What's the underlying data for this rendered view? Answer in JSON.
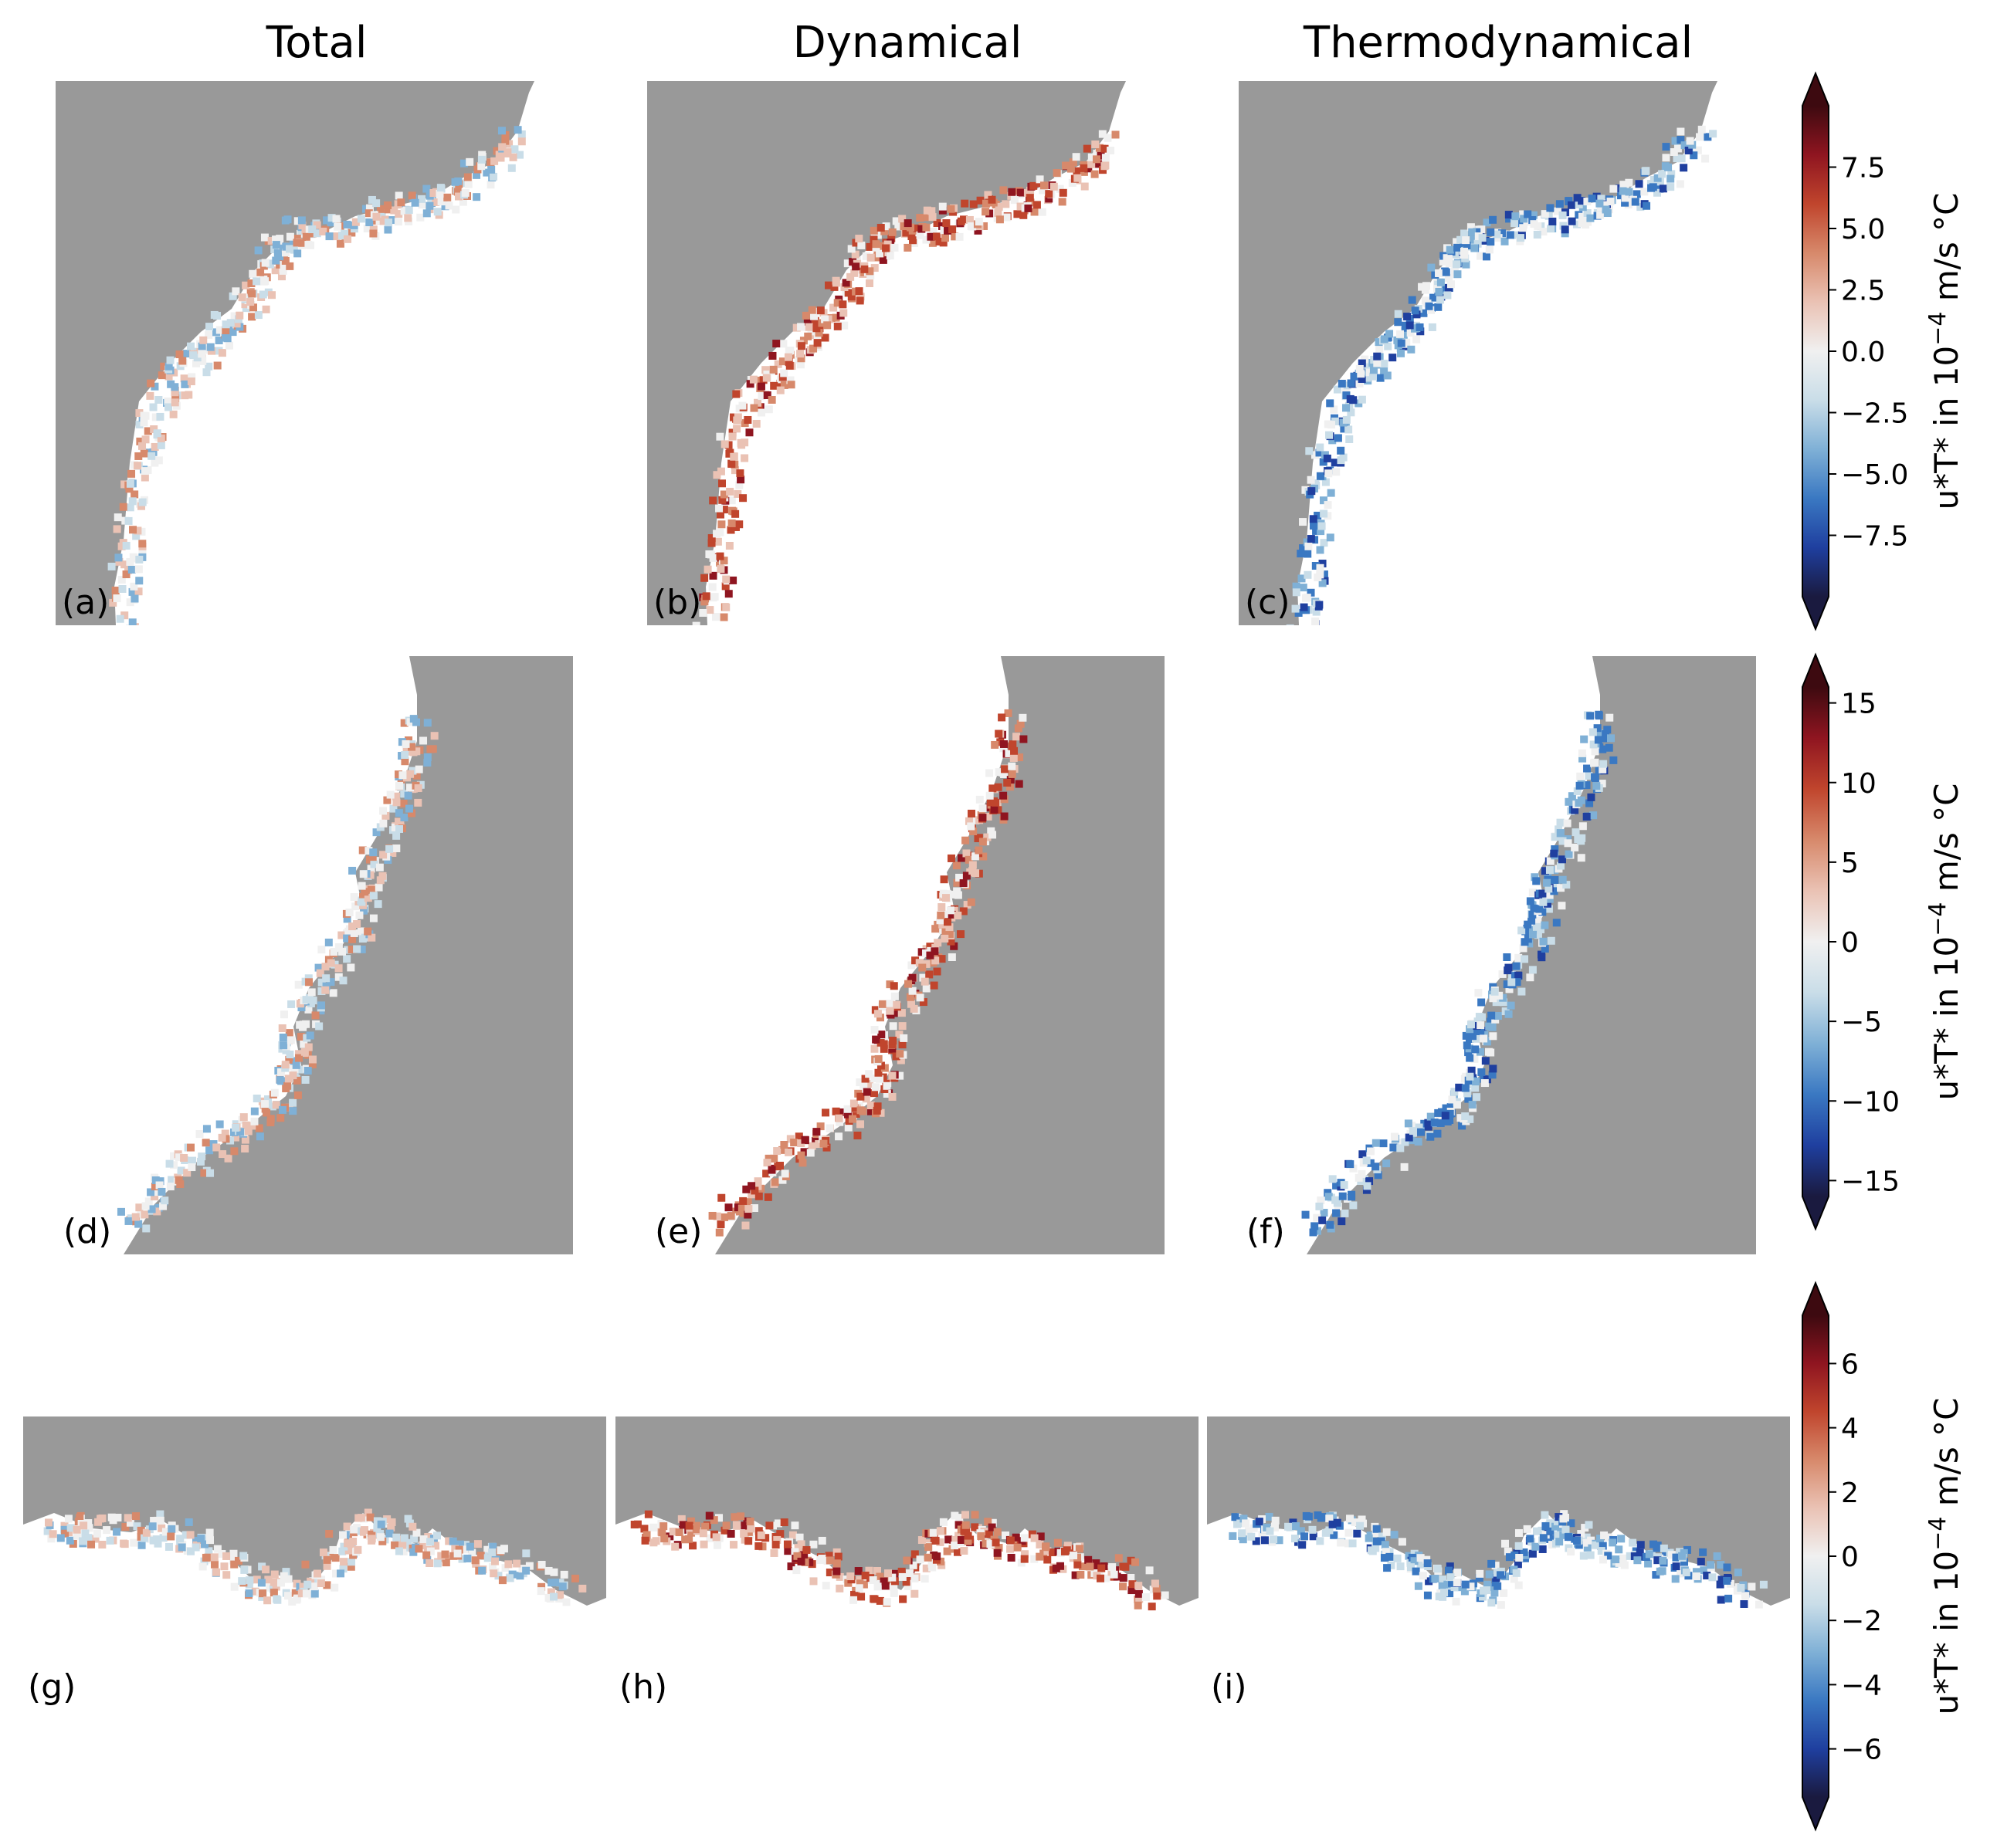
{
  "column_titles": [
    "Total",
    "Dynamical",
    "Thermodynamical"
  ],
  "colors": {
    "land": "#999999",
    "background": "#ffffff",
    "colormap": [
      "#1a1a3f",
      "#1f3f9f",
      "#3a78c2",
      "#7fb0d6",
      "#c9dde8",
      "#f0f0f0",
      "#eac2b4",
      "#d7896b",
      "#c0452d",
      "#8f1520",
      "#3d0a10"
    ],
    "colormap_name": "balance (diverging blue-white-red)"
  },
  "chart_data": [
    {
      "type": "heatmap",
      "row": 1,
      "colorbar": {
        "label": "u*T* in 10⁻⁴ m/s °C",
        "label_text": "u*T* in 10",
        "label_exp": "−4",
        "label_unit": " m/s °C",
        "vmin": -10,
        "vmax": 10,
        "extend": "both",
        "ticks": [
          7.5,
          5.0,
          2.5,
          0.0,
          -2.5,
          -5.0,
          -7.5
        ],
        "tick_labels": [
          "7.5",
          "5.0",
          "2.5",
          "0.0",
          "−2.5",
          "−5.0",
          "−7.5"
        ]
      },
      "panels": [
        {
          "label": "(a)",
          "title": "Total",
          "field": "total",
          "dominant": "mixed"
        },
        {
          "label": "(b)",
          "title": "Dynamical",
          "field": "dynamical",
          "dominant": "positive"
        },
        {
          "label": "(c)",
          "title": "Thermodynamical",
          "field": "thermodynamical",
          "dominant": "negative"
        }
      ]
    },
    {
      "type": "heatmap",
      "row": 2,
      "colorbar": {
        "label": "u*T* in 10⁻⁴ m/s °C",
        "label_text": "u*T* in 10",
        "label_exp": "−4",
        "label_unit": " m/s °C",
        "vmin": -16,
        "vmax": 16,
        "extend": "both",
        "ticks": [
          15,
          10,
          5,
          0,
          -5,
          -10,
          -15
        ],
        "tick_labels": [
          "15",
          "10",
          "5",
          "0",
          "−5",
          "−10",
          "−15"
        ]
      },
      "panels": [
        {
          "label": "(d)",
          "field": "total",
          "dominant": "mixed"
        },
        {
          "label": "(e)",
          "field": "dynamical",
          "dominant": "positive"
        },
        {
          "label": "(f)",
          "field": "thermodynamical",
          "dominant": "negative"
        }
      ]
    },
    {
      "type": "heatmap",
      "row": 3,
      "colorbar": {
        "label": "u*T* in 10⁻⁴ m/s °C",
        "label_text": "u*T* in 10",
        "label_exp": "−4",
        "label_unit": " m/s °C",
        "vmin": -7.5,
        "vmax": 7.5,
        "extend": "both",
        "ticks": [
          6,
          4,
          2,
          0,
          -2,
          -4,
          -6
        ],
        "tick_labels": [
          "6",
          "4",
          "2",
          "0",
          "−2",
          "−4",
          "−6"
        ]
      },
      "panels": [
        {
          "label": "(g)",
          "field": "total",
          "dominant": "mixed"
        },
        {
          "label": "(h)",
          "field": "dynamical",
          "dominant": "positive"
        },
        {
          "label": "(i)",
          "field": "thermodynamical",
          "dominant": "negative"
        }
      ]
    }
  ]
}
